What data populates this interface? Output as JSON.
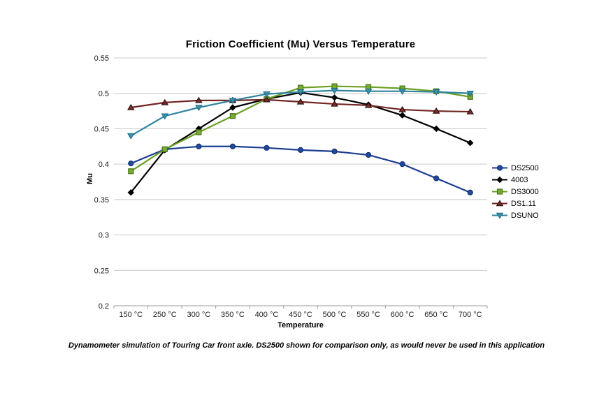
{
  "page": {
    "background": "#ffffff"
  },
  "chart_data": {
    "type": "line",
    "title": "Friction Coefficient (Mu) Versus Temperature",
    "xlabel": "Temperature",
    "ylabel": "Mu",
    "categories": [
      "150 °C",
      "250 °C",
      "300 °C",
      "350 °C",
      "400 °C",
      "450 °C",
      "500 °C",
      "550 °C",
      "600 °C",
      "650 °C",
      "700 °C"
    ],
    "ylim": [
      0.2,
      0.55
    ],
    "ytick_step": 0.05,
    "ytick_labels": [
      "0.55",
      "0.5",
      "0.45",
      "0.4",
      "0.35",
      "0.3",
      "0.25",
      "0.2"
    ],
    "grid": true,
    "grid_color": "#c9c9c9",
    "axis_color": "#9b9b9b",
    "legend_position": "right",
    "series": [
      {
        "name": "DS2500",
        "marker": "circle",
        "color": "#1b3d91",
        "marker_fill": "#1e4ba0",
        "marker_stroke": "#122a66",
        "values": [
          0.401,
          0.421,
          0.425,
          0.425,
          0.423,
          0.42,
          0.418,
          0.413,
          0.4,
          0.38,
          0.36
        ]
      },
      {
        "name": "4003",
        "marker": "diamond",
        "color": "#000000",
        "marker_fill": "#000000",
        "marker_stroke": "#000000",
        "values": [
          0.36,
          0.42,
          0.45,
          0.48,
          0.492,
          0.501,
          0.494,
          0.484,
          0.469,
          0.45,
          0.43
        ]
      },
      {
        "name": "DS3000",
        "marker": "square",
        "color": "#69a023",
        "marker_fill": "#76ab34",
        "marker_stroke": "#4a7617",
        "values": [
          0.39,
          0.421,
          0.445,
          0.468,
          0.492,
          0.508,
          0.51,
          0.509,
          0.507,
          0.503,
          0.495
        ]
      },
      {
        "name": "DS1.11",
        "marker": "triangle-up",
        "color": "#722523",
        "marker_fill": "#7d2b28",
        "marker_stroke": "#1e0a09",
        "values": [
          0.48,
          0.487,
          0.49,
          0.49,
          0.491,
          0.488,
          0.485,
          0.483,
          0.477,
          0.475,
          0.474
        ]
      },
      {
        "name": "DSUNO",
        "marker": "triangle-down",
        "color": "#2f849e",
        "marker_fill": "#3b91ab",
        "marker_stroke": "#1d6a82",
        "values": [
          0.44,
          0.468,
          0.48,
          0.49,
          0.499,
          0.502,
          0.504,
          0.503,
          0.503,
          0.502,
          0.5
        ]
      }
    ]
  },
  "caption": "Dynamometer simulation of Touring Car front axle. DS2500 shown for comparison only, as would never be used in this application"
}
